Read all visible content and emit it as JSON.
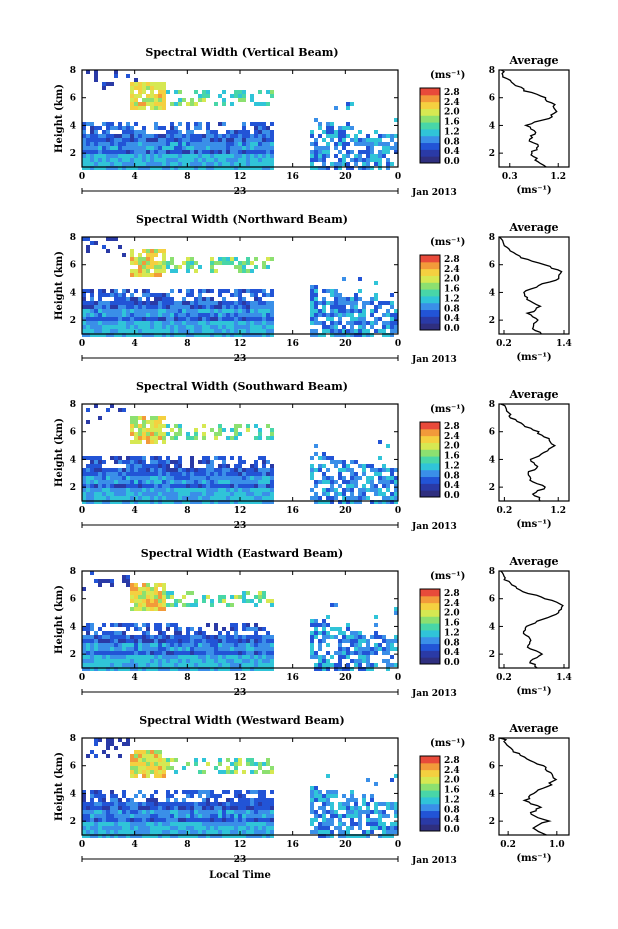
{
  "figure": {
    "xlabel": "Local Time",
    "date_label": "Jan 2013",
    "day_label": "23",
    "ylabel": "Height (km)",
    "units": "(ms⁻¹)",
    "avg_xlabel": "(ms⁻¹)"
  },
  "colorbar": {
    "tick_labels": [
      "2.8",
      "2.4",
      "2.0",
      "1.6",
      "1.2",
      "0.8",
      "0.4",
      "0.0"
    ],
    "colors": [
      "#2f2f7f",
      "#2a3aa6",
      "#2254d6",
      "#3a8fe8",
      "#30c4d8",
      "#48d6a8",
      "#8ce070",
      "#d6e852",
      "#f4d040",
      "#f29a3a",
      "#e84a3a"
    ]
  },
  "chart_data": [
    {
      "type": "heatmap",
      "title": "Spectral Width (Vertical Beam)",
      "xlim": [
        0,
        24
      ],
      "ylim": [
        1,
        8
      ],
      "xticks": [
        "0",
        "4",
        "8",
        "12",
        "16",
        "20",
        "0"
      ],
      "yticks": [
        "2",
        "4",
        "6",
        "8"
      ],
      "avg": {
        "title": "Average",
        "xticks": [
          "0.3",
          "1.2"
        ],
        "xlim": [
          0.1,
          1.4
        ],
        "heights": [
          1.0,
          1.5,
          2.0,
          2.5,
          3.0,
          3.5,
          4.0,
          4.5,
          5.0,
          5.5,
          6.0,
          6.5,
          7.0,
          7.5,
          8.0
        ],
        "values": [
          0.95,
          0.8,
          0.7,
          0.85,
          0.65,
          0.8,
          0.6,
          1.0,
          1.2,
          1.1,
          0.95,
          0.6,
          0.35,
          0.2,
          0.15
        ]
      }
    },
    {
      "type": "heatmap",
      "title": "Spectral Width (Northward Beam)",
      "xlim": [
        0,
        24
      ],
      "ylim": [
        1,
        8
      ],
      "xticks": [
        "0",
        "4",
        "8",
        "12",
        "16",
        "20",
        "0"
      ],
      "yticks": [
        "2",
        "4",
        "6",
        "8"
      ],
      "avg": {
        "title": "Average",
        "xticks": [
          "0.2",
          "1.4"
        ],
        "xlim": [
          0.1,
          1.5
        ],
        "heights": [
          1.0,
          1.5,
          2.0,
          2.5,
          3.0,
          3.5,
          4.0,
          4.5,
          5.0,
          5.5,
          6.0,
          6.5,
          7.0,
          7.5,
          8.0
        ],
        "values": [
          0.95,
          0.75,
          0.9,
          0.7,
          0.95,
          0.65,
          0.6,
          0.9,
          1.3,
          1.35,
          1.0,
          0.55,
          0.3,
          0.2,
          0.15
        ]
      }
    },
    {
      "type": "heatmap",
      "title": "Spectral Width (Southward Beam)",
      "xlim": [
        0,
        24
      ],
      "ylim": [
        1,
        8
      ],
      "xticks": [
        "0",
        "4",
        "8",
        "12",
        "16",
        "20",
        "0"
      ],
      "yticks": [
        "2",
        "4",
        "6",
        "8"
      ],
      "avg": {
        "title": "Average",
        "xticks": [
          "0.2",
          "1.2"
        ],
        "xlim": [
          0.1,
          1.4
        ],
        "heights": [
          1.0,
          1.5,
          2.0,
          2.5,
          3.0,
          3.5,
          4.0,
          4.5,
          5.0,
          5.5,
          6.0,
          6.5,
          7.0,
          7.5,
          8.0
        ],
        "values": [
          0.9,
          0.75,
          0.95,
          0.7,
          0.65,
          0.8,
          0.7,
          0.95,
          1.15,
          1.0,
          0.8,
          0.55,
          0.35,
          0.25,
          0.15
        ]
      }
    },
    {
      "type": "heatmap",
      "title": "Spectral Width (Eastward Beam)",
      "xlim": [
        0,
        24
      ],
      "ylim": [
        1,
        8
      ],
      "xticks": [
        "0",
        "4",
        "8",
        "12",
        "16",
        "20",
        "0"
      ],
      "yticks": [
        "2",
        "4",
        "6",
        "8"
      ],
      "avg": {
        "title": "Average",
        "xticks": [
          "0.2",
          "1.4"
        ],
        "xlim": [
          0.1,
          1.5
        ],
        "heights": [
          1.0,
          1.5,
          2.0,
          2.5,
          3.0,
          3.5,
          4.0,
          4.5,
          5.0,
          5.5,
          6.0,
          6.5,
          7.0,
          7.5,
          8.0
        ],
        "values": [
          0.9,
          0.7,
          0.95,
          0.65,
          0.75,
          0.6,
          0.65,
          0.95,
          1.3,
          1.4,
          1.05,
          0.6,
          0.35,
          0.2,
          0.15
        ]
      }
    },
    {
      "type": "heatmap",
      "title": "Spectral Width (Westward Beam)",
      "xlim": [
        0,
        24
      ],
      "ylim": [
        1,
        8
      ],
      "xticks": [
        "0",
        "4",
        "8",
        "12",
        "16",
        "20",
        "0"
      ],
      "yticks": [
        "2",
        "4",
        "6",
        "8"
      ],
      "avg": {
        "title": "Average",
        "xticks": [
          "0.2",
          "1.0"
        ],
        "xlim": [
          0.05,
          1.2
        ],
        "heights": [
          1.0,
          1.5,
          2.0,
          2.5,
          3.0,
          3.5,
          4.0,
          4.5,
          5.0,
          5.5,
          6.0,
          6.5,
          7.0,
          7.5,
          8.0
        ],
        "values": [
          0.8,
          0.6,
          0.85,
          0.55,
          0.7,
          0.5,
          0.6,
          0.85,
          0.95,
          0.9,
          0.75,
          0.5,
          0.3,
          0.2,
          0.1
        ]
      }
    }
  ]
}
